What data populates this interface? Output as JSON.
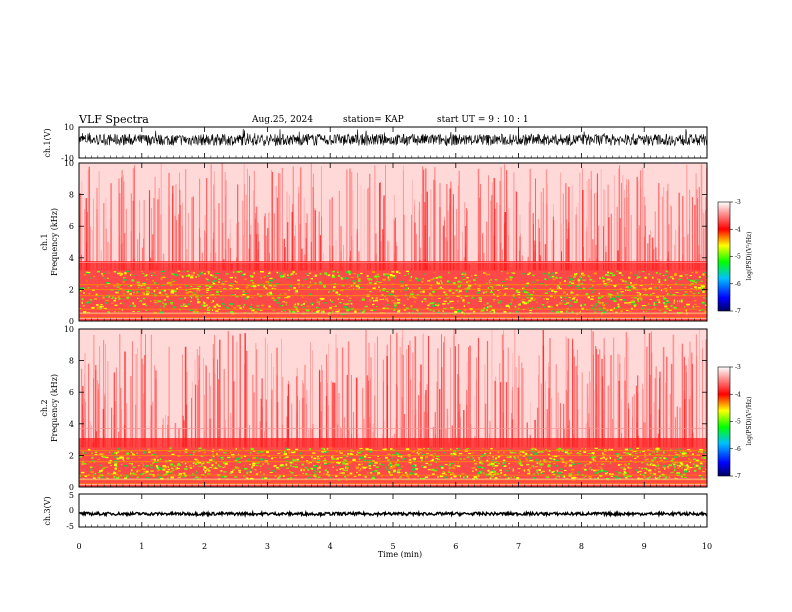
{
  "header": {
    "title": "VLF Spectra",
    "date": "Aug.25, 2024",
    "station": "station= KAP",
    "start": "start  UT =   9 : 10 : 1"
  },
  "chart_data": [
    {
      "type": "line",
      "name": "ch1-waveform",
      "ylabel": "ch.1(V)",
      "x_range_min": [
        0,
        10
      ],
      "y_range": [
        -10,
        10
      ],
      "y_ticks": [
        "10",
        "-10"
      ],
      "description_visible": "dense black noise trace filling roughly +5 to -2 V"
    },
    {
      "type": "heatmap",
      "name": "ch1-spectrogram",
      "ylabel": "ch.1\nFrequency (kHz)",
      "ylabel_line1": "ch.1",
      "ylabel_line2": "Frequency  (kHz)",
      "x_range_min": [
        0,
        10
      ],
      "y_range_khz": [
        0,
        10
      ],
      "y_ticks": [
        "0",
        "2",
        "4",
        "6",
        "8",
        "10"
      ],
      "color_scale": {
        "label": "log(PSD)(V²/Hz)",
        "range": [
          -7,
          -3
        ],
        "ticks": [
          "-3",
          "-4",
          "-5",
          "-6",
          "-7"
        ]
      },
      "bands_khz": {
        "strong_green_yellow": [
          0.5,
          3.2
        ],
        "red_background": [
          3.2,
          10
        ]
      }
    },
    {
      "type": "heatmap",
      "name": "ch2-spectrogram",
      "ylabel_line1": "ch.2",
      "ylabel_line2": "Frequency  (kHz)",
      "x_range_min": [
        0,
        10
      ],
      "y_range_khz": [
        0,
        10
      ],
      "y_ticks": [
        "0",
        "2",
        "4",
        "6",
        "8",
        "10"
      ],
      "color_scale": {
        "label": "log(PSD)(V²/Hz)",
        "range": [
          -7,
          -3
        ],
        "ticks": [
          "-3",
          "-4",
          "-5",
          "-6",
          "-7"
        ]
      },
      "bands_khz": {
        "strong_green_yellow": [
          0.5,
          2.5
        ],
        "red_background": [
          2.5,
          10
        ]
      }
    },
    {
      "type": "line",
      "name": "ch3-waveform",
      "ylabel": "ch.3(V)",
      "x_range_min": [
        0,
        10
      ],
      "y_range": [
        -5,
        5
      ],
      "y_ticks": [
        "5",
        "0",
        "-5"
      ],
      "approx_level_v": -1
    }
  ],
  "x_axis": {
    "label": "Time  (min)",
    "ticks": [
      "0",
      "1",
      "2",
      "3",
      "4",
      "5",
      "6",
      "7",
      "8",
      "9",
      "10"
    ],
    "range": [
      0,
      10
    ]
  },
  "colors": {
    "background": "#ffffff",
    "trace": "#000000",
    "colormap": [
      "#000080",
      "#0000ff",
      "#00c8ff",
      "#00ff00",
      "#ffff00",
      "#ff8000",
      "#ff0000",
      "#ffffff"
    ]
  }
}
